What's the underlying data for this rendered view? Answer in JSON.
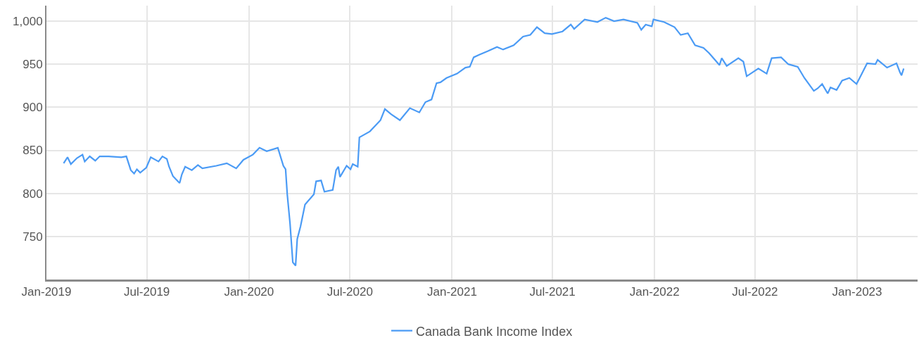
{
  "chart_data": {
    "type": "line",
    "x": [
      "2019-02-01",
      "2019-02-08",
      "2019-02-14",
      "2019-02-25",
      "2019-03-07",
      "2019-03-11",
      "2019-03-20",
      "2019-03-30",
      "2019-04-07",
      "2019-04-23",
      "2019-05-16",
      "2019-05-25",
      "2019-06-02",
      "2019-06-08",
      "2019-06-13",
      "2019-06-19",
      "2019-06-30",
      "2019-07-08",
      "2019-07-22",
      "2019-07-29",
      "2019-08-06",
      "2019-08-10",
      "2019-08-17",
      "2019-08-29",
      "2019-09-02",
      "2019-09-08",
      "2019-09-20",
      "2019-10-01",
      "2019-10-09",
      "2019-11-03",
      "2019-11-22",
      "2019-12-09",
      "2019-12-22",
      "2020-01-08",
      "2020-01-20",
      "2020-02-02",
      "2020-02-22",
      "2020-03-03",
      "2020-03-07",
      "2020-03-10",
      "2020-03-15",
      "2020-03-20",
      "2020-03-25",
      "2020-03-28",
      "2020-04-03",
      "2020-04-11",
      "2020-04-27",
      "2020-05-01",
      "2020-05-10",
      "2020-05-16",
      "2020-05-31",
      "2020-06-06",
      "2020-06-10",
      "2020-06-13",
      "2020-06-25",
      "2020-07-02",
      "2020-07-06",
      "2020-07-15",
      "2020-07-18",
      "2020-08-06",
      "2020-08-25",
      "2020-09-02",
      "2020-09-13",
      "2020-09-29",
      "2020-10-17",
      "2020-11-03",
      "2020-11-14",
      "2020-11-25",
      "2020-12-04",
      "2020-12-11",
      "2020-12-22",
      "2021-01-10",
      "2021-01-25",
      "2021-02-02",
      "2021-02-09",
      "2021-02-19",
      "2021-03-06",
      "2021-03-23",
      "2021-04-03",
      "2021-04-22",
      "2021-05-09",
      "2021-05-22",
      "2021-06-03",
      "2021-06-17",
      "2021-06-30",
      "2021-07-19",
      "2021-08-03",
      "2021-08-09",
      "2021-08-28",
      "2021-09-20",
      "2021-10-05",
      "2021-10-20",
      "2021-11-06",
      "2021-12-01",
      "2021-12-08",
      "2021-12-16",
      "2021-12-27",
      "2021-12-30",
      "2022-01-18",
      "2022-02-06",
      "2022-02-17",
      "2022-03-02",
      "2022-03-15",
      "2022-03-30",
      "2022-04-09",
      "2022-04-28",
      "2022-05-02",
      "2022-05-11",
      "2022-06-01",
      "2022-06-10",
      "2022-06-16",
      "2022-07-07",
      "2022-07-22",
      "2022-07-31",
      "2022-08-17",
      "2022-08-30",
      "2022-09-16",
      "2022-09-28",
      "2022-10-15",
      "2022-10-22",
      "2022-10-30",
      "2022-11-09",
      "2022-11-14",
      "2022-11-25",
      "2022-12-05",
      "2022-12-18",
      "2022-12-31",
      "2023-01-08",
      "2023-01-19",
      "2023-02-03",
      "2023-02-07",
      "2023-02-24",
      "2023-03-13",
      "2023-03-19",
      "2023-03-22",
      "2023-03-26"
    ],
    "series": [
      {
        "name": "Canada Bank Income Index",
        "color": "#4b9bf5",
        "values": [
          835,
          842,
          834,
          841,
          845,
          837,
          843,
          838,
          843,
          843,
          842,
          843,
          827,
          823,
          828,
          824,
          830,
          842,
          837,
          843,
          840,
          831,
          820,
          812,
          822,
          831,
          827,
          833,
          829,
          832,
          835,
          829,
          839,
          845,
          853,
          849,
          853,
          832,
          828,
          799,
          765,
          720,
          716,
          747,
          762,
          787,
          799,
          814,
          815,
          802,
          804,
          827,
          831,
          819,
          832,
          828,
          834,
          831,
          865,
          872,
          885,
          898,
          892,
          885,
          899,
          894,
          906,
          909,
          928,
          929,
          934,
          939,
          946,
          947,
          958,
          961,
          965,
          970,
          967,
          972,
          982,
          984,
          993,
          986,
          985,
          988,
          996,
          991,
          1002,
          999,
          1004,
          1000,
          1002,
          998,
          990,
          996,
          994,
          1002,
          999,
          993,
          984,
          986,
          972,
          969,
          963,
          949,
          957,
          948,
          957,
          953,
          936,
          945,
          939,
          957,
          958,
          950,
          947,
          934,
          919,
          922,
          927,
          916,
          923,
          920,
          931,
          934,
          927,
          937,
          951,
          950,
          955,
          946,
          951,
          941,
          937,
          945
        ]
      }
    ],
    "xlim": [
      "2019-01-01",
      "2023-04-20"
    ],
    "xticks": [
      {
        "value": "2019-01-01",
        "label": "Jan-2019"
      },
      {
        "value": "2019-07-01",
        "label": "Jul-2019"
      },
      {
        "value": "2020-01-01",
        "label": "Jan-2020"
      },
      {
        "value": "2020-07-01",
        "label": "Jul-2020"
      },
      {
        "value": "2021-01-01",
        "label": "Jan-2021"
      },
      {
        "value": "2021-07-01",
        "label": "Jul-2021"
      },
      {
        "value": "2022-01-01",
        "label": "Jan-2022"
      },
      {
        "value": "2022-07-01",
        "label": "Jul-2022"
      },
      {
        "value": "2023-01-01",
        "label": "Jan-2023"
      }
    ],
    "ylim": [
      700,
      1018
    ],
    "yticks": [
      750,
      800,
      850,
      900,
      950,
      {
        "value": 1000,
        "label": "1,000"
      }
    ],
    "grid": true,
    "legend": "bottom",
    "marker": "none",
    "line_style": "solid"
  }
}
